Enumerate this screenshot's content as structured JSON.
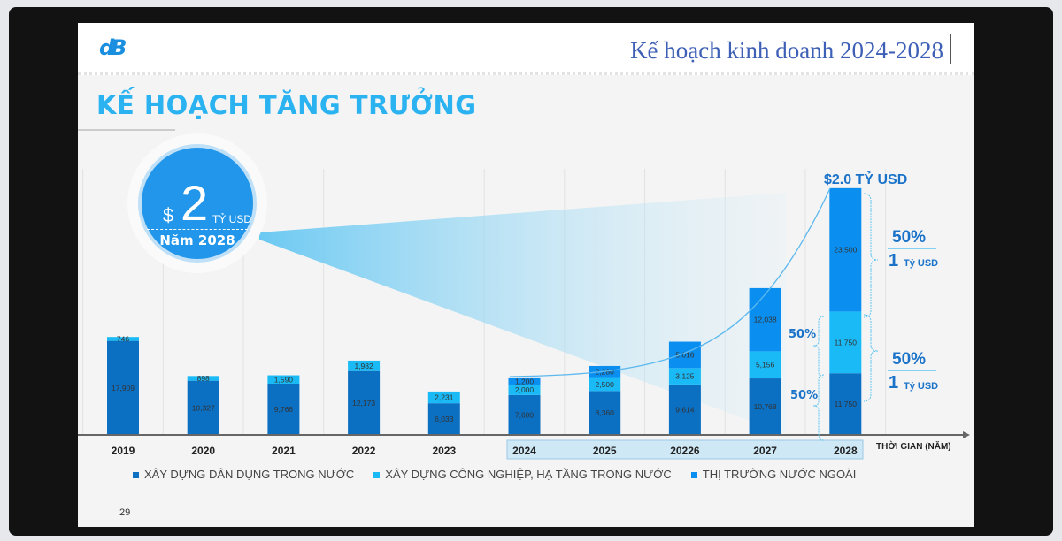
{
  "header": {
    "title": "Kế hoạch kinh doanh 2024-2028",
    "logo_text": "dB"
  },
  "slide": {
    "title": "KẾ HOẠCH TĂNG TRƯỞNG",
    "page_number": "29"
  },
  "callout": {
    "currency": "$",
    "amount": "2",
    "unit": "TỶ USD",
    "year_label": "Năm 2028"
  },
  "annotations": {
    "total_2028": "$2.0 TỶ USD",
    "pct_a": "50%",
    "pct_b": "50%",
    "right_top_pct": "50%",
    "right_top_value": "1",
    "right_top_unit": "Tỷ USD",
    "right_bottom_pct": "50%",
    "right_bottom_value": "1",
    "right_bottom_unit": "Tỷ USD"
  },
  "chart_data": {
    "type": "bar",
    "stacked": true,
    "categories": [
      "2019",
      "2020",
      "2021",
      "2022",
      "2023",
      "2024",
      "2025",
      "20226",
      "2027",
      "2028"
    ],
    "xlabel": "THỜI GIAN (NĂM)",
    "series": [
      {
        "name": "XÂY DỰNG DÂN DỤNG TRONG NƯỚC",
        "color": "#0b6fc2",
        "values": [
          17909,
          10327,
          9766,
          12173,
          6033,
          7600,
          8360,
          9614,
          10768,
          11750
        ]
      },
      {
        "name": "XÂY DỰNG CÔNG NGHIỆP, HẠ TẦNG TRONG NƯỚC",
        "color": "#1abaf6",
        "values": [
          746,
          898,
          1590,
          1982,
          2231,
          2000,
          2500,
          3125,
          5156,
          11750
        ]
      },
      {
        "name": "THỊ TRƯỜNG NƯỚC NGOÀI",
        "color": "#0a8ff0",
        "values": [
          null,
          null,
          null,
          null,
          null,
          1200,
          2280,
          5016,
          12038,
          23500
        ]
      }
    ],
    "value_labels": [
      [
        "17,909",
        "10,327",
        "9,766",
        "12,173",
        "6,033",
        "7,600",
        "8,360",
        "9,614",
        "10,768",
        "11,750"
      ],
      [
        "746",
        "898",
        "1,590",
        "1,982",
        "2,231",
        "2,000",
        "2,500",
        "3,125",
        "5,156",
        "11,750"
      ],
      [
        "",
        "",
        "",
        "",
        "",
        "1,200",
        "2,280",
        "5,016",
        "12,038",
        "23,500"
      ]
    ],
    "highlighted_categories": [
      "2024",
      "2025",
      "20226",
      "2027",
      "2028"
    ],
    "legend_position": "bottom"
  }
}
